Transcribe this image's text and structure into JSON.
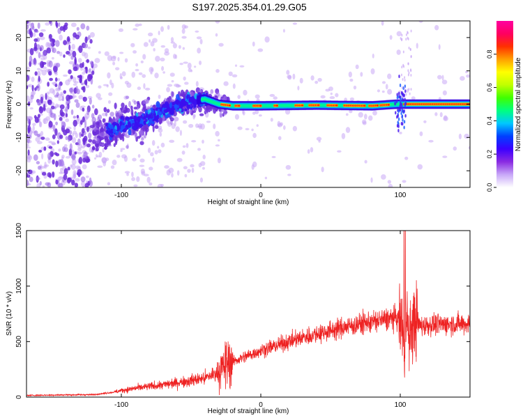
{
  "title": "S197.2025.354.01.29.G05",
  "chart_data": [
    {
      "type": "heatmap",
      "description_label": "spectrogram",
      "xlabel": "Height of straight line (km)",
      "ylabel": "Frequency (Hz)",
      "xlim": [
        -168,
        150
      ],
      "ylim": [
        -25,
        25
      ],
      "xticks": [
        -100,
        0,
        100
      ],
      "yticks": [
        -20,
        -10,
        0,
        10,
        20
      ],
      "colorbar": {
        "label": "Normalized spectral amplitude",
        "range": [
          0,
          1
        ],
        "ticks": [
          "0.0",
          "0.2",
          "0.4",
          "0.6",
          "0.8"
        ],
        "colors": [
          "#ffffff",
          "#c8a8f8",
          "#8a2be2",
          "#3c00ff",
          "#0040ff",
          "#00c8ff",
          "#00ff80",
          "#40ff00",
          "#c0ff00",
          "#ffff00",
          "#ffa000",
          "#ff3000",
          "#ff0060",
          "#ff00a0"
        ]
      },
      "ridge": [
        {
          "x": -108,
          "f": -8
        },
        {
          "x": -95,
          "f": -6
        },
        {
          "x": -80,
          "f": -4
        },
        {
          "x": -65,
          "f": -1
        },
        {
          "x": -50,
          "f": 1
        },
        {
          "x": -40,
          "f": 1.5
        },
        {
          "x": -30,
          "f": 0
        },
        {
          "x": -20,
          "f": -0.5
        },
        {
          "x": 0,
          "f": -0.5
        },
        {
          "x": 40,
          "f": -0.3
        },
        {
          "x": 80,
          "f": -0.5
        },
        {
          "x": 98,
          "f": 0
        },
        {
          "x": 105,
          "f": 0
        },
        {
          "x": 150,
          "f": 0
        }
      ]
    },
    {
      "type": "line",
      "xlabel": "Height of straight line (km)",
      "ylabel": "SNR (10 * v/v)",
      "xlim": [
        -168,
        150
      ],
      "ylim": [
        0,
        1500
      ],
      "xticks": [
        -100,
        0,
        100
      ],
      "yticks": [
        0,
        500,
        1000,
        1500
      ],
      "color": "#ee2222",
      "series": [
        {
          "name": "SNR",
          "x": [
            -168,
            -140,
            -120,
            -105,
            -100,
            -90,
            -80,
            -70,
            -60,
            -50,
            -40,
            -30,
            -25,
            -23,
            -20,
            -10,
            0,
            10,
            20,
            40,
            60,
            80,
            95,
            100,
            102,
            103,
            104,
            106,
            110,
            115,
            120,
            140,
            150
          ],
          "y": [
            15,
            20,
            22,
            45,
            60,
            80,
            95,
            110,
            130,
            150,
            170,
            230,
            290,
            320,
            320,
            370,
            420,
            460,
            500,
            570,
            630,
            680,
            710,
            700,
            600,
            200,
            900,
            500,
            700,
            640,
            650,
            660,
            660
          ]
        }
      ]
    }
  ]
}
